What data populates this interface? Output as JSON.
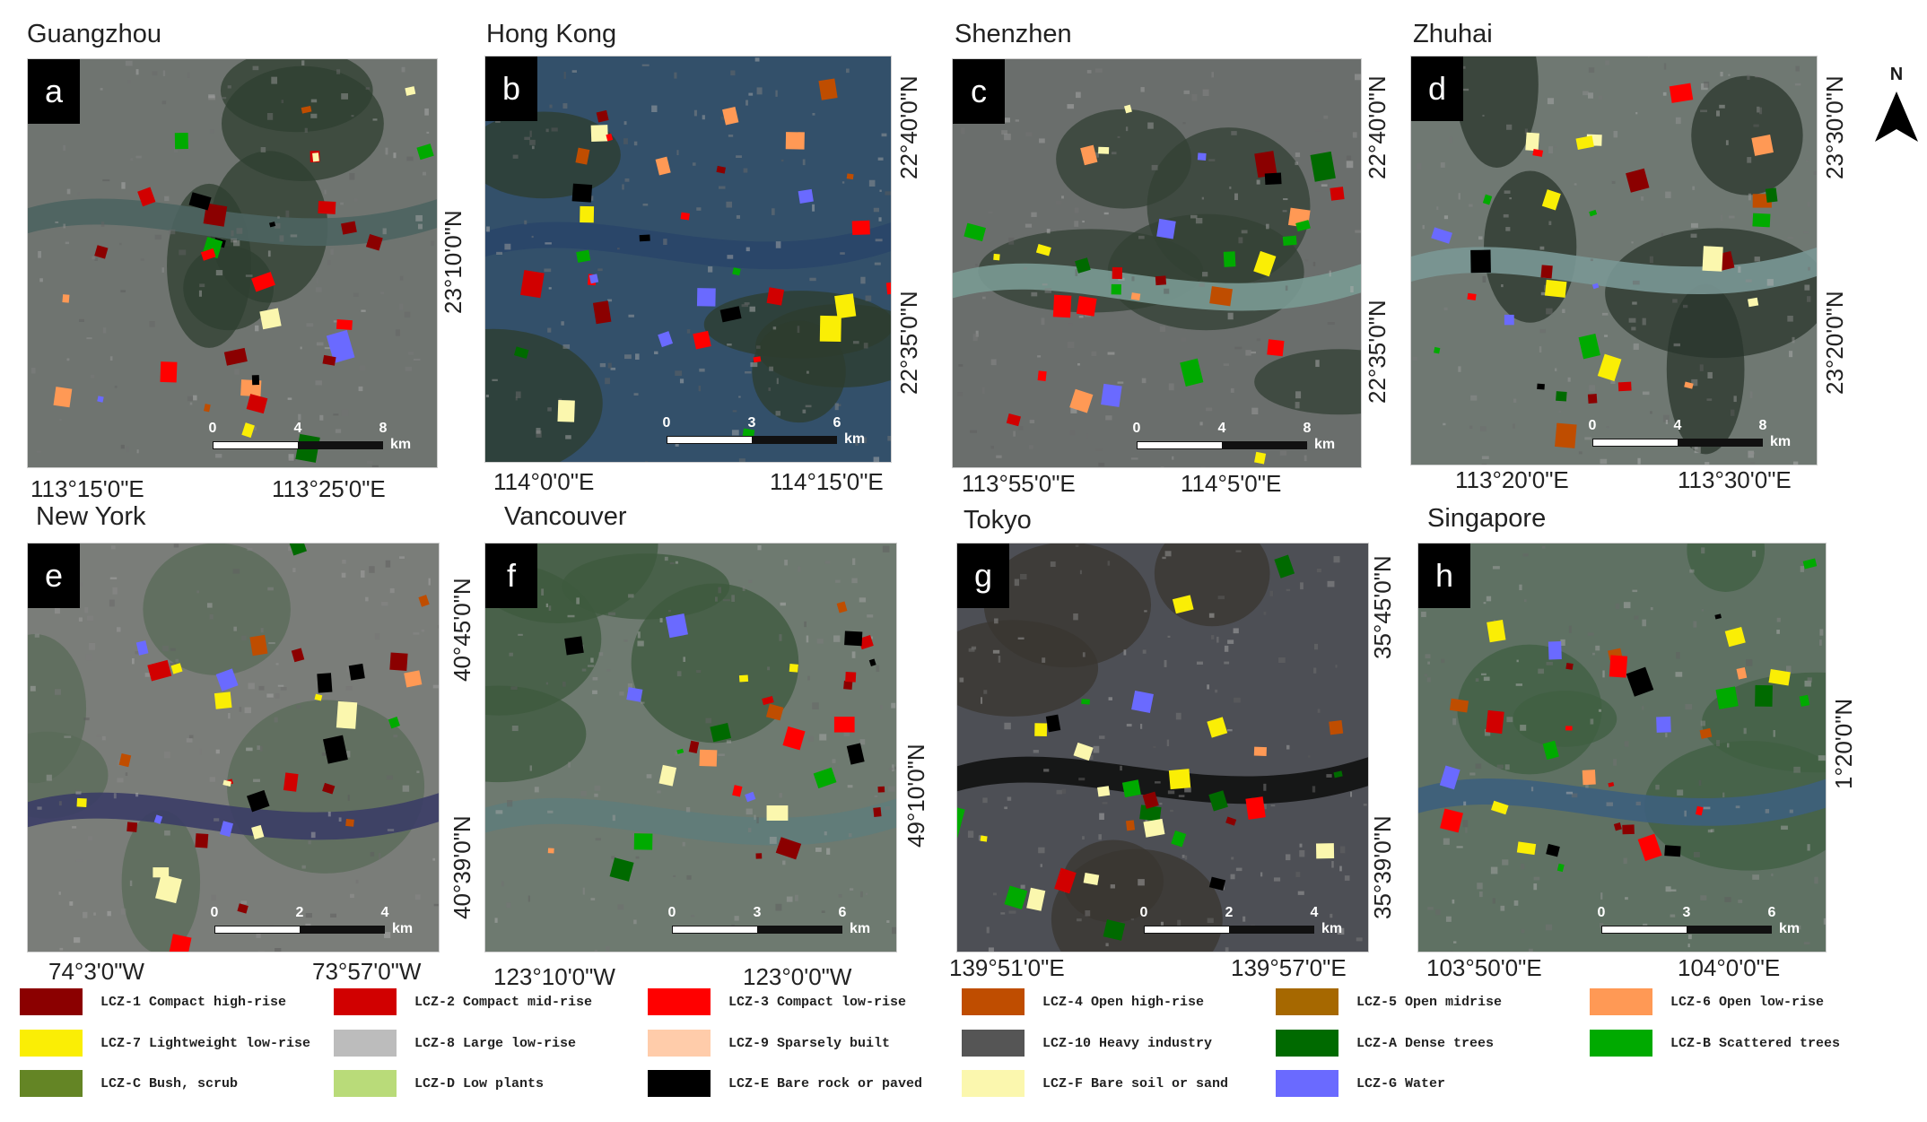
{
  "panels": [
    {
      "letter": "a",
      "city": "Guangzhou",
      "scale": [
        "0",
        "4",
        "8"
      ],
      "unit": "km",
      "lon": [
        "113°15'0\"E",
        "113°25'0\"E"
      ],
      "lat": [
        "23°10'0\"N"
      ]
    },
    {
      "letter": "b",
      "city": "Hong Kong",
      "scale": [
        "0",
        "3",
        "6"
      ],
      "unit": "km",
      "lon": [
        "114°0'0\"E",
        "114°15'0\"E"
      ],
      "lat": [
        "22°40'0\"N",
        "22°35'0\"N"
      ]
    },
    {
      "letter": "c",
      "city": "Shenzhen",
      "scale": [
        "0",
        "4",
        "8"
      ],
      "unit": "km",
      "lon": [
        "113°55'0\"E",
        "114°5'0\"E"
      ],
      "lat": [
        "22°40'0\"N",
        "22°35'0\"N"
      ]
    },
    {
      "letter": "d",
      "city": "Zhuhai",
      "scale": [
        "0",
        "4",
        "8"
      ],
      "unit": "km",
      "lon": [
        "113°20'0\"E",
        "113°30'0\"E"
      ],
      "lat": [
        "23°30'0\"N",
        "23°20'0\"N"
      ]
    },
    {
      "letter": "e",
      "city": "New York",
      "scale": [
        "0",
        "2",
        "4"
      ],
      "unit": "km",
      "lon": [
        "74°3'0\"W",
        "73°57'0\"W"
      ],
      "lat": [
        "40°45'0\"N",
        "40°39'0\"N"
      ]
    },
    {
      "letter": "f",
      "city": "Vancouver",
      "scale": [
        "0",
        "3",
        "6"
      ],
      "unit": "km",
      "lon": [
        "123°10'0\"W",
        "123°0'0\"W"
      ],
      "lat": [
        "49°10'0\"N"
      ]
    },
    {
      "letter": "g",
      "city": "Tokyo",
      "scale": [
        "0",
        "2",
        "4"
      ],
      "unit": "km",
      "lon": [
        "139°51'0\"E",
        "139°57'0\"E"
      ],
      "lat": [
        "35°45'0\"N",
        "35°39'0\"N"
      ]
    },
    {
      "letter": "h",
      "city": "Singapore",
      "scale": [
        "0",
        "3",
        "6"
      ],
      "unit": "km",
      "lon": [
        "103°50'0\"E",
        "104°0'0\"E"
      ],
      "lat": [
        "1°20'0\"N"
      ]
    }
  ],
  "north_arrow": "N",
  "legend": [
    {
      "label": "LCZ-1 Compact high-rise",
      "color": "#8b0000"
    },
    {
      "label": "LCZ-2 Compact mid-rise",
      "color": "#d10000"
    },
    {
      "label": "LCZ-3 Compact low-rise",
      "color": "#ff0000"
    },
    {
      "label": "LCZ-4 Open high-rise",
      "color": "#bf4d00"
    },
    {
      "label": "LCZ-5 Open midrise",
      "color": "#a66800"
    },
    {
      "label": "LCZ-6 Open low-rise",
      "color": "#ff9955"
    },
    {
      "label": "LCZ-7 Lightweight low-rise",
      "color": "#faee05"
    },
    {
      "label": "LCZ-8 Large low-rise",
      "color": "#bcbcbc"
    },
    {
      "label": "LCZ-9 Sparsely built",
      "color": "#ffccaa"
    },
    {
      "label": "LCZ-10 Heavy industry",
      "color": "#555555"
    },
    {
      "label": "LCZ-A Dense trees",
      "color": "#006a00"
    },
    {
      "label": "LCZ-B Scattered trees",
      "color": "#00aa00"
    },
    {
      "label": "LCZ-C Bush, scrub",
      "color": "#648525"
    },
    {
      "label": "LCZ-D Low plants",
      "color": "#b9db79"
    },
    {
      "label": "LCZ-E Bare rock or paved",
      "color": "#000000"
    },
    {
      "label": "LCZ-F Bare soil or sand",
      "color": "#fbf7ae"
    },
    {
      "label": "LCZ-G Water",
      "color": "#6a6aff"
    }
  ]
}
